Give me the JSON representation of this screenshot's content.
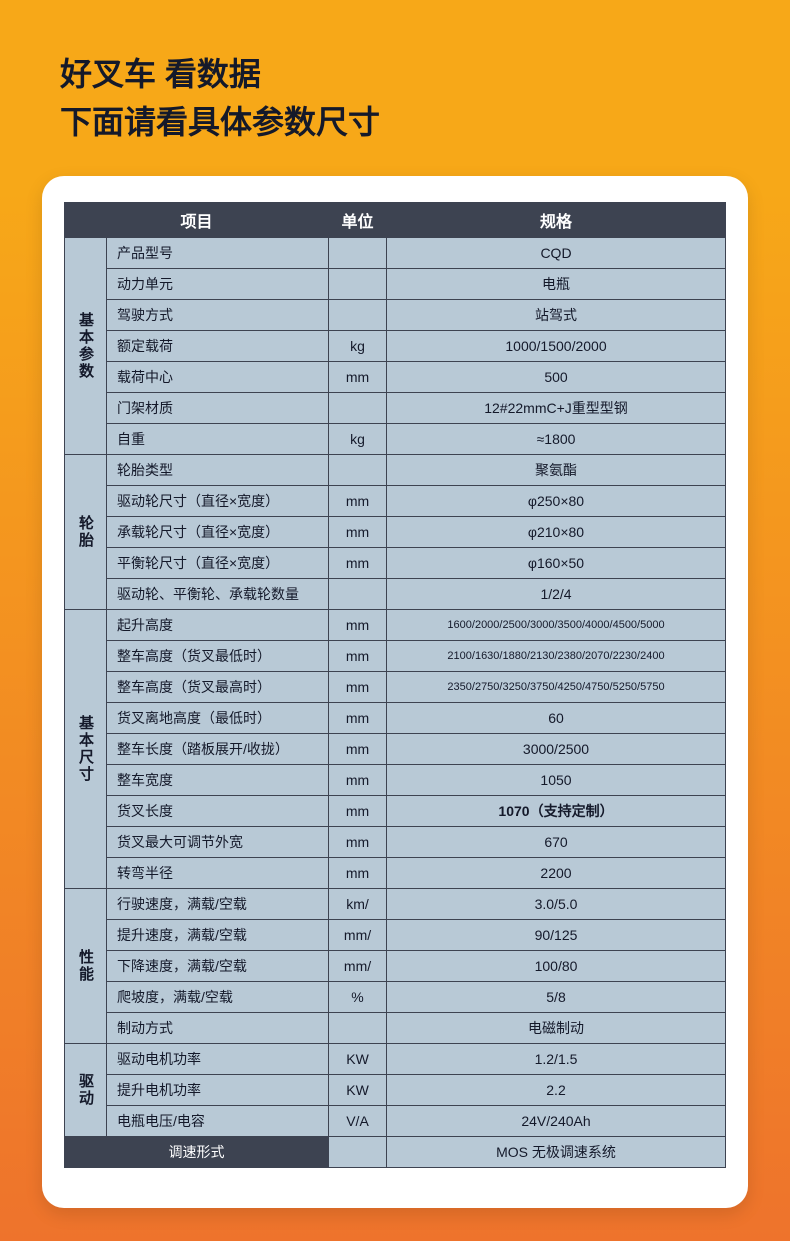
{
  "header": {
    "line1": "好叉车  看数据",
    "line2": "下面请看具体参数尺寸"
  },
  "columns": {
    "item": "项目",
    "unit": "单位",
    "spec": "规格"
  },
  "groups": [
    {
      "name": "基本参数",
      "rows": [
        {
          "param": "产品型号",
          "unit": "",
          "spec": "CQD"
        },
        {
          "param": "动力单元",
          "unit": "",
          "spec": "电瓶"
        },
        {
          "param": "驾驶方式",
          "unit": "",
          "spec": "站驾式"
        },
        {
          "param": "额定载荷",
          "unit": "kg",
          "spec": "1000/1500/2000"
        },
        {
          "param": "载荷中心",
          "unit": "mm",
          "spec": "500"
        },
        {
          "param": "门架材质",
          "unit": "",
          "spec": "12#22mmC+J重型型钢"
        },
        {
          "param": "自重",
          "unit": "kg",
          "spec": "≈1800"
        }
      ]
    },
    {
      "name": "轮胎",
      "rows": [
        {
          "param": "轮胎类型",
          "unit": "",
          "spec": "聚氨酯"
        },
        {
          "param": "驱动轮尺寸（直径×宽度）",
          "unit": "mm",
          "spec": "φ250×80"
        },
        {
          "param": "承载轮尺寸（直径×宽度）",
          "unit": "mm",
          "spec": "φ210×80"
        },
        {
          "param": "平衡轮尺寸（直径×宽度）",
          "unit": "mm",
          "spec": "φ160×50"
        },
        {
          "param": "驱动轮、平衡轮、承载轮数量",
          "unit": "",
          "spec": "1/2/4"
        }
      ]
    },
    {
      "name": "基本尺寸",
      "rows": [
        {
          "param": "起升高度",
          "unit": "mm",
          "spec": "1600/2000/2500/3000/3500/4000/4500/5000",
          "small": true
        },
        {
          "param": "整车高度（货叉最低时）",
          "unit": "mm",
          "spec": "2100/1630/1880/2130/2380/2070/2230/2400",
          "small": true
        },
        {
          "param": "整车高度（货叉最高时）",
          "unit": "mm",
          "spec": "2350/2750/3250/3750/4250/4750/5250/5750",
          "small": true
        },
        {
          "param": "货叉离地高度（最低时）",
          "unit": "mm",
          "spec": "60"
        },
        {
          "param": "整车长度（踏板展开/收拢）",
          "unit": "mm",
          "spec": "3000/2500"
        },
        {
          "param": "整车宽度",
          "unit": "mm",
          "spec": "1050"
        },
        {
          "param": "货叉长度",
          "unit": "mm",
          "spec": "1070（支持定制）",
          "bold": true
        },
        {
          "param": "货叉最大可调节外宽",
          "unit": "mm",
          "spec": "670"
        },
        {
          "param": "转弯半径",
          "unit": "mm",
          "spec": "2200"
        }
      ]
    },
    {
      "name": "性能",
      "rows": [
        {
          "param": "行驶速度，满载/空载",
          "unit": "km/",
          "spec": "3.0/5.0"
        },
        {
          "param": "提升速度，满载/空载",
          "unit": "mm/",
          "spec": "90/125"
        },
        {
          "param": "下降速度，满载/空载",
          "unit": "mm/",
          "spec": "100/80"
        },
        {
          "param": "爬坡度，满载/空载",
          "unit": "%",
          "spec": "5/8"
        },
        {
          "param": "制动方式",
          "unit": "",
          "spec": "电磁制动"
        }
      ]
    },
    {
      "name": "驱动",
      "rows": [
        {
          "param": "驱动电机功率",
          "unit": "KW",
          "spec": "1.2/1.5"
        },
        {
          "param": "提升电机功率",
          "unit": "KW",
          "spec": "2.2"
        },
        {
          "param": "电瓶电压/电容",
          "unit": "V/A",
          "spec": "24V/240Ah"
        }
      ]
    }
  ],
  "footer": {
    "param": "调速形式",
    "spec": "MOS 无极调速系统"
  },
  "colors": {
    "bg_top": "#f7a818",
    "bg_bottom": "#ee732c",
    "card_bg": "#ffffff",
    "header_bg": "#3d4351",
    "header_fg": "#ffffff",
    "cell_bg": "#b8c9d6",
    "cell_fg": "#14192a",
    "border": "#3d4351"
  }
}
